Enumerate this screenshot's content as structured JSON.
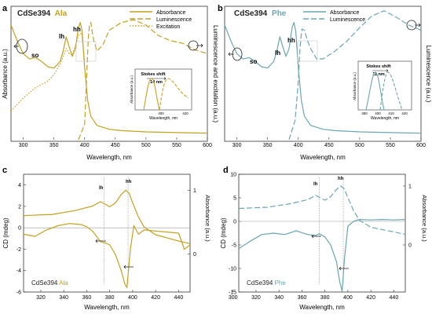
{
  "colors": {
    "gold": "#c4a020",
    "teal": "#6aa6b0",
    "black": "#222222"
  },
  "panels": {
    "a": {
      "letter": "a",
      "title_main": "CdSe394",
      "title_ligand": "Ala",
      "xlabel": "Wavelength, nm",
      "ylabel_left": "Absorbance (a.u.)",
      "ylabel_right": "Luminescence and excitation (a.u.)",
      "xticks": [
        "300",
        "350",
        "400",
        "450",
        "500",
        "550",
        "600"
      ],
      "peak_labels": {
        "so": "so",
        "lh": "lh",
        "hh": "hh"
      },
      "legend": [
        "Absorbance",
        "Luminescence",
        "Excitation"
      ],
      "inset": {
        "title": "Stokes shift",
        "shift": "14 nm",
        "xlabel": "Wavelength, nm",
        "ylabel": "Absorbance (a.u.)",
        "xticks": [
          "400",
          "420"
        ]
      }
    },
    "b": {
      "letter": "b",
      "title_main": "CdSe394",
      "title_ligand": "Phe",
      "xlabel": "Wavelength, nm",
      "ylabel_right": "Luminescence (a.u.)",
      "xticks": [
        "300",
        "350",
        "400",
        "450",
        "500",
        "550",
        "600"
      ],
      "peak_labels": {
        "so": "so",
        "lh": "lh",
        "hh": "hh"
      },
      "legend": [
        "Absorbance",
        "Luminescence"
      ],
      "inset": {
        "title": "Stokes shift",
        "shift": "11 nm",
        "xlabel": "Wavelength, nm",
        "ylabel": "Absorbance (a.u.)",
        "xticks": [
          "390",
          "400",
          "410",
          "420"
        ]
      }
    },
    "c": {
      "letter": "c",
      "title_main": "CdSe394",
      "title_ligand": "Ala",
      "xlabel": "Wavelength, nm",
      "ylabel_left": "CD (mdeg)",
      "ylabel_right": "Absorbance (a.u.)",
      "xticks": [
        "320",
        "340",
        "360",
        "380",
        "400",
        "420",
        "440"
      ],
      "yticks_left": [
        "4",
        "2",
        "0",
        "-2",
        "-4",
        "-6"
      ],
      "yticks_right": [
        "1",
        "0"
      ],
      "peak_labels": {
        "lh": "lh",
        "hh": "hh"
      }
    },
    "d": {
      "letter": "d",
      "title_main": "CdSe394",
      "title_ligand": "Phe",
      "xlabel": "Wavelength, nm",
      "ylabel_left": "CD (mdeg)",
      "ylabel_right": "Absorbance (a.u.)",
      "xticks": [
        "300",
        "320",
        "340",
        "360",
        "380",
        "400",
        "420",
        "440"
      ],
      "yticks_left": [
        "10",
        "5",
        "0",
        "-5",
        "-10",
        "-15"
      ],
      "yticks_right": [
        "1",
        "0"
      ],
      "peak_labels": {
        "lh": "lh",
        "hh": "hh"
      }
    }
  },
  "chart_data": [
    {
      "panel": "a",
      "type": "line",
      "xlim": [
        280,
        600
      ],
      "series": [
        {
          "name": "Absorbance",
          "style": "solid",
          "color": "#c4a020",
          "x": [
            280,
            290,
            300,
            310,
            320,
            330,
            340,
            350,
            360,
            365,
            370,
            375,
            380,
            385,
            390,
            393,
            396,
            400,
            405,
            410,
            420,
            440,
            460,
            500,
            550,
            600
          ],
          "y": [
            0.88,
            0.76,
            0.66,
            0.62,
            0.63,
            0.6,
            0.56,
            0.55,
            0.6,
            0.68,
            0.79,
            0.71,
            0.64,
            0.7,
            0.86,
            0.9,
            0.83,
            0.55,
            0.3,
            0.18,
            0.11,
            0.08,
            0.07,
            0.06,
            0.055,
            0.05
          ]
        },
        {
          "name": "Luminescence",
          "style": "dash",
          "color": "#c4a020",
          "x": [
            390,
            400,
            403,
            406,
            408,
            410,
            412,
            415,
            420,
            430,
            440,
            460,
            480,
            500,
            520,
            540,
            560,
            580,
            600
          ],
          "y": [
            0.0,
            0.12,
            0.45,
            0.78,
            0.88,
            0.9,
            0.84,
            0.76,
            0.68,
            0.73,
            0.84,
            0.9,
            0.92,
            0.88,
            0.8,
            0.76,
            0.74,
            0.69,
            0.66
          ]
        },
        {
          "name": "Excitation",
          "style": "dot",
          "color": "#c4a020",
          "x": [
            280,
            300,
            320,
            340,
            350,
            360,
            370,
            375,
            380,
            390,
            395,
            400
          ],
          "y": [
            0.22,
            0.32,
            0.4,
            0.45,
            0.5,
            0.58,
            0.7,
            0.66,
            0.65,
            0.8,
            0.82,
            0.6
          ]
        }
      ]
    },
    {
      "panel": "b",
      "type": "line",
      "xlim": [
        280,
        600
      ],
      "series": [
        {
          "name": "Absorbance",
          "style": "solid",
          "color": "#6aa6b0",
          "x": [
            280,
            290,
            300,
            310,
            320,
            330,
            340,
            350,
            360,
            365,
            370,
            375,
            380,
            385,
            390,
            393,
            396,
            400,
            405,
            410,
            420,
            440,
            460,
            500,
            550,
            600
          ],
          "y": [
            0.88,
            0.76,
            0.66,
            0.62,
            0.63,
            0.6,
            0.56,
            0.55,
            0.6,
            0.68,
            0.79,
            0.71,
            0.64,
            0.7,
            0.86,
            0.9,
            0.83,
            0.55,
            0.3,
            0.18,
            0.11,
            0.08,
            0.07,
            0.06,
            0.055,
            0.05
          ]
        },
        {
          "name": "Luminescence",
          "style": "dash",
          "color": "#6aa6b0",
          "x": [
            385,
            395,
            400,
            403,
            406,
            410,
            415,
            420,
            430,
            440,
            460,
            480,
            500,
            520,
            540,
            560,
            580,
            600
          ],
          "y": [
            0.0,
            0.15,
            0.45,
            0.72,
            0.85,
            0.84,
            0.76,
            0.7,
            0.62,
            0.62,
            0.68,
            0.76,
            0.86,
            0.95,
            0.99,
            0.94,
            0.88,
            0.84
          ]
        }
      ]
    },
    {
      "panel": "c",
      "type": "line",
      "xlim": [
        305,
        450
      ],
      "ylim": [
        -6,
        5
      ],
      "series": [
        {
          "name": "CD",
          "style": "solid",
          "color": "#c4a020",
          "x": [
            305,
            315,
            325,
            335,
            345,
            355,
            360,
            365,
            370,
            372,
            376,
            380,
            385,
            390,
            393,
            395,
            398,
            401,
            405,
            410,
            420,
            430,
            440,
            445,
            450
          ],
          "y": [
            -0.6,
            -0.8,
            -0.2,
            0.2,
            0.4,
            0.3,
            0.1,
            -0.3,
            -1.0,
            -1.3,
            -1.4,
            -1.6,
            -2.5,
            -4.0,
            -5.2,
            -5.6,
            -2.0,
            0.2,
            -0.6,
            -0.2,
            -0.3,
            -0.4,
            -0.5,
            -2.0,
            -1.6
          ]
        },
        {
          "name": "Absorbance",
          "style": "solid",
          "color": "#c4a020",
          "x": [
            305,
            330,
            350,
            365,
            372,
            376,
            380,
            385,
            390,
            394,
            397,
            400,
            405,
            410,
            420,
            440,
            450
          ],
          "y": [
            0.6,
            0.62,
            0.68,
            0.75,
            0.82,
            0.78,
            0.74,
            0.8,
            0.93,
            1.0,
            0.95,
            0.8,
            0.58,
            0.42,
            0.3,
            0.2,
            0.16
          ]
        }
      ]
    },
    {
      "panel": "d",
      "type": "line",
      "xlim": [
        305,
        450
      ],
      "ylim": [
        -15,
        10
      ],
      "series": [
        {
          "name": "CD",
          "style": "solid",
          "color": "#6aa6b0",
          "x": [
            305,
            315,
            325,
            335,
            345,
            355,
            365,
            372,
            375,
            380,
            385,
            390,
            393,
            395,
            397,
            400,
            405,
            410,
            420,
            430,
            440,
            450
          ],
          "y": [
            -5.8,
            -4.2,
            -2.8,
            -2.5,
            -2.8,
            -2.0,
            -2.8,
            -3.0,
            -2.6,
            -3.3,
            -5.0,
            -8.5,
            -13.0,
            -14.8,
            -8.0,
            -1.0,
            0.0,
            0.4,
            0.3,
            0.4,
            0.3,
            0.4
          ]
        },
        {
          "name": "Absorbance",
          "style": "dash",
          "color": "#6aa6b0",
          "x": [
            305,
            330,
            350,
            365,
            372,
            376,
            380,
            385,
            390,
            394,
            397,
            400,
            405,
            410,
            420,
            440,
            450
          ],
          "y": [
            0.62,
            0.64,
            0.7,
            0.77,
            0.84,
            0.8,
            0.76,
            0.82,
            0.94,
            1.0,
            0.95,
            0.8,
            0.58,
            0.42,
            0.3,
            0.22,
            0.18
          ]
        }
      ]
    }
  ]
}
